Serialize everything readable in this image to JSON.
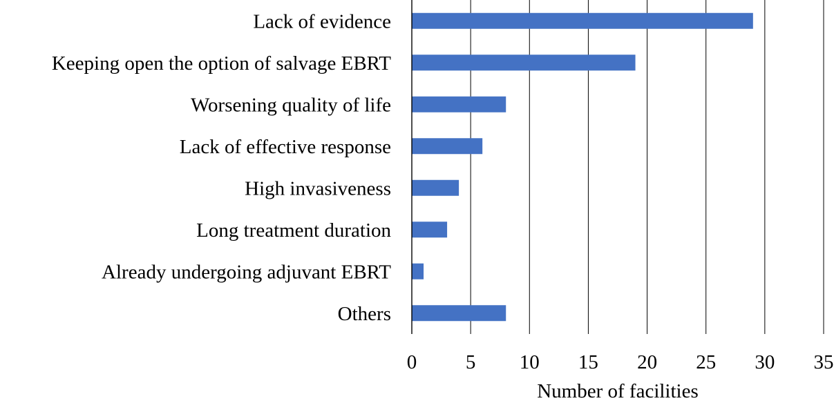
{
  "chart_data": {
    "type": "bar",
    "orientation": "horizontal",
    "categories": [
      "Lack of evidence",
      "Keeping open the option of salvage EBRT",
      "Worsening quality of life",
      "Lack of effective response",
      "High invasiveness",
      "Long treatment duration",
      "Already undergoing adjuvant EBRT",
      "Others"
    ],
    "values": [
      29,
      19,
      8,
      6,
      4,
      3,
      1,
      8
    ],
    "title": "",
    "xlabel": "Number of facilities",
    "ylabel": "",
    "xlim": [
      0,
      35
    ],
    "xticks": [
      0,
      5,
      10,
      15,
      20,
      25,
      30,
      35
    ],
    "grid": "vertical",
    "legend": "none",
    "bar_color": "#4472C4"
  }
}
